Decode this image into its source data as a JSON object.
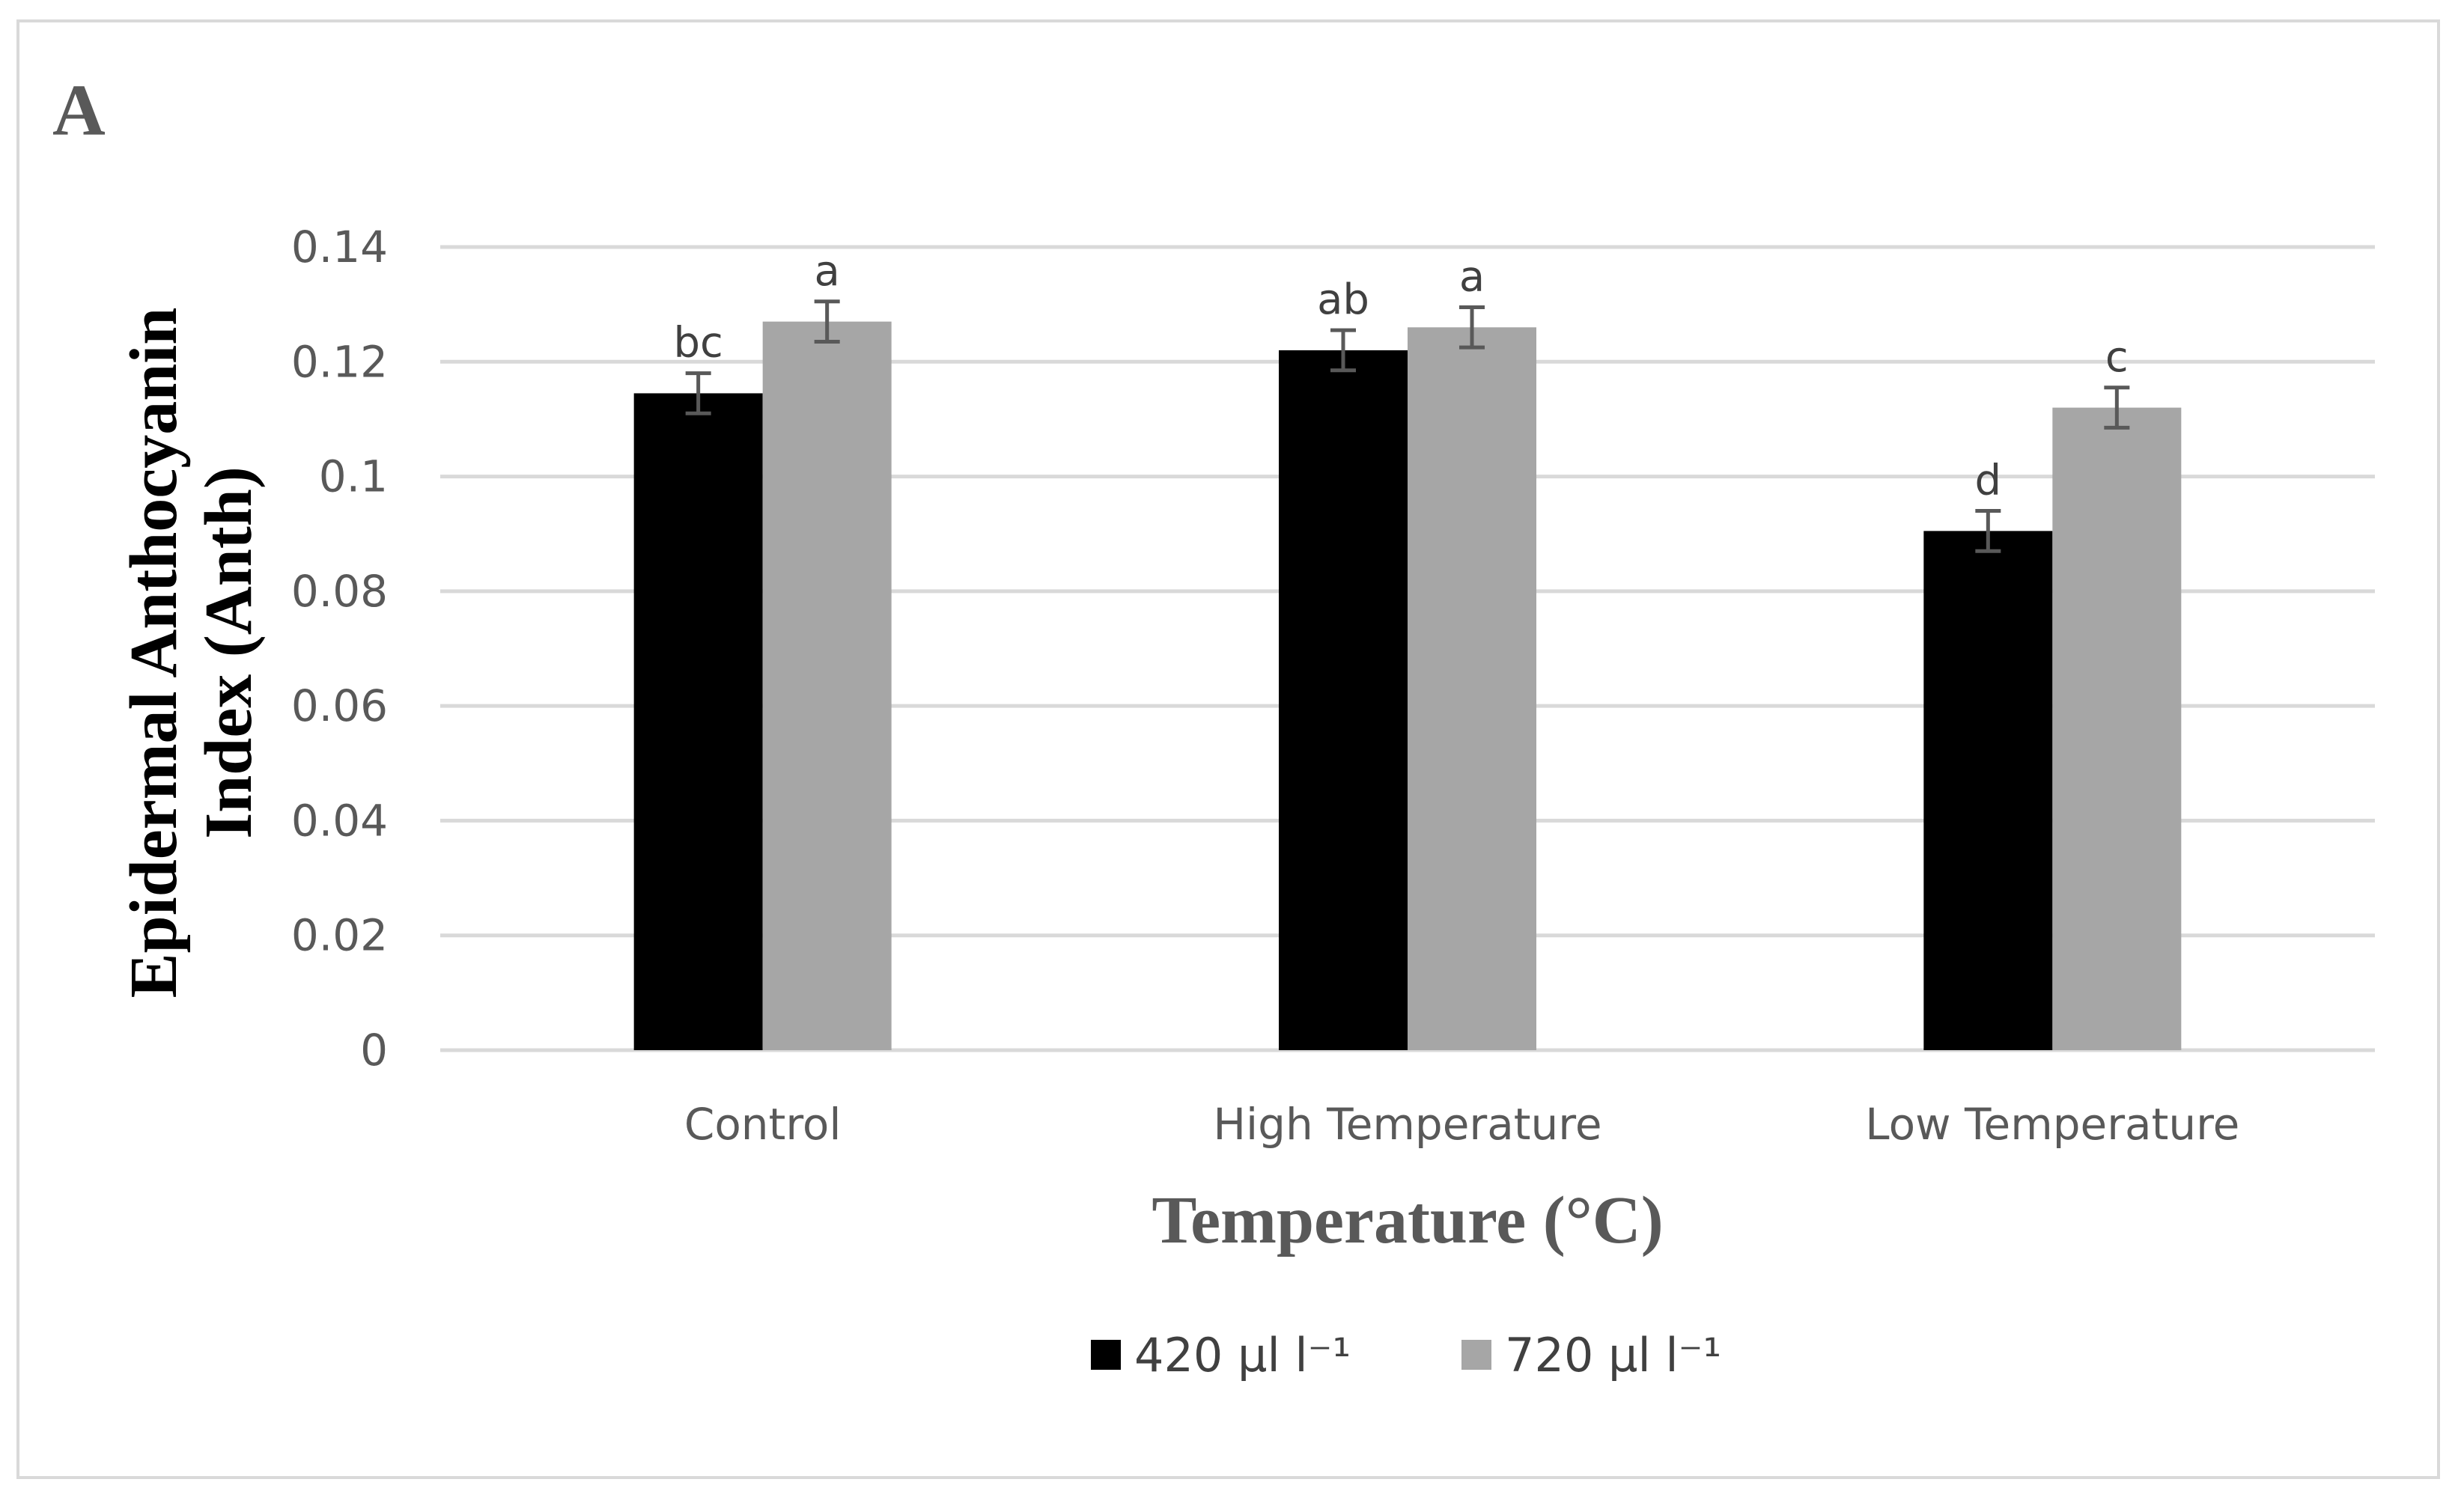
{
  "panel_label": "A",
  "chart_data": {
    "type": "bar",
    "title": "",
    "xlabel": "Temperature (°C)",
    "ylabel_lines": [
      "Epidermal Anthocyanin",
      "Index (Anth)"
    ],
    "categories": [
      "Control",
      "High Temperature",
      "Low Temperature"
    ],
    "ylim": [
      0,
      0.14
    ],
    "yticks": [
      0,
      0.02,
      0.04,
      0.06,
      0.08,
      0.1,
      0.12,
      0.14
    ],
    "ytick_labels": [
      "0",
      "0.02",
      "0.04",
      "0.06",
      "0.08",
      "0.1",
      "0.12",
      "0.14"
    ],
    "grid": true,
    "legend_position": "bottom-center",
    "series": [
      {
        "name": "420 µl l⁻¹",
        "color": "#000000",
        "values": [
          0.1145,
          0.122,
          0.0905
        ],
        "errors": [
          0.0035,
          0.0035,
          0.0035
        ],
        "significance": [
          "bc",
          "ab",
          "d"
        ]
      },
      {
        "name": "720 µl l⁻¹",
        "color": "#a6a6a6",
        "values": [
          0.127,
          0.126,
          0.112
        ],
        "errors": [
          0.0035,
          0.0035,
          0.0035
        ],
        "significance": [
          "a",
          "a",
          "c"
        ]
      }
    ]
  }
}
